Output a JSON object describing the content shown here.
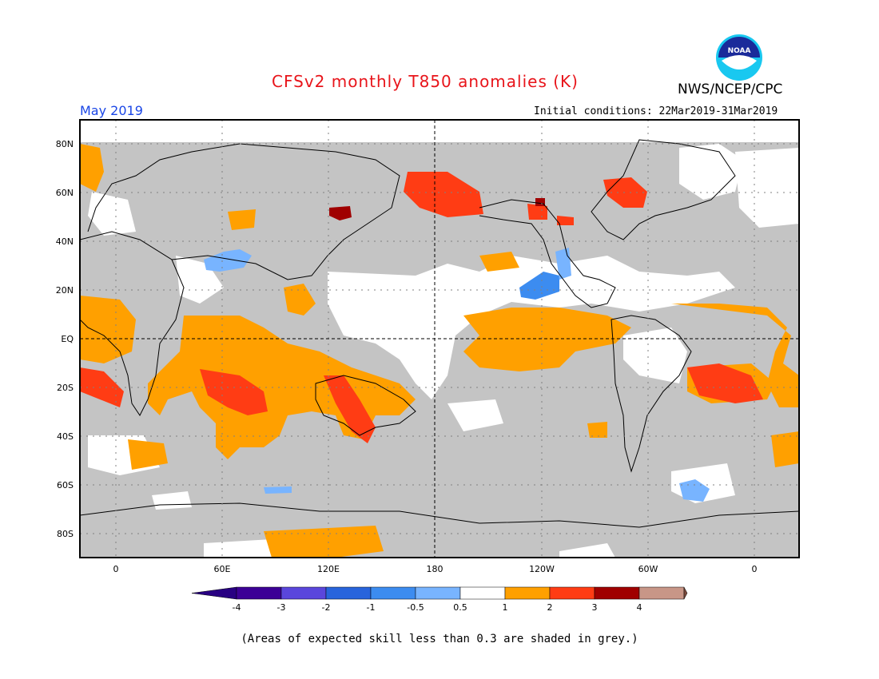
{
  "header": {
    "title": "CFSv2 monthly T850 anomalies (K)",
    "org": "NWS/NCEP/CPC",
    "month": "May 2019",
    "initial_conditions": "Initial conditions: 22Mar2019-31Mar2019"
  },
  "logo": {
    "text": "NOAA"
  },
  "map": {
    "lat_ticks": [
      "80N",
      "60N",
      "40N",
      "20N",
      "EQ",
      "20S",
      "40S",
      "60S",
      "80S"
    ],
    "lon_ticks": [
      "0",
      "60E",
      "120E",
      "180",
      "120W",
      "60W",
      "0"
    ],
    "colors": {
      "skill_grey": "#c4c4c4",
      "ocean_white": "#ffffff",
      "orange": "#ffa000",
      "red": "#ff3c14",
      "dark_red": "#a00000",
      "light_blue": "#78b4ff",
      "blue": "#3c8cf0"
    }
  },
  "colorbar": {
    "labels": [
      "-4",
      "-3",
      "-2",
      "-1",
      "-0.5",
      "0.5",
      "1",
      "2",
      "3",
      "4"
    ],
    "colors": [
      "#3c0096",
      "#5a46dc",
      "#2864dc",
      "#3c8cf0",
      "#78b4ff",
      "#ffffff",
      "#ffa000",
      "#ff3c14",
      "#a00000",
      "#c89687"
    ],
    "end_low": "#280082",
    "end_high": "#7a4a3c"
  },
  "footnote": "(Areas of expected skill less than 0.3 are shaded in grey.)"
}
